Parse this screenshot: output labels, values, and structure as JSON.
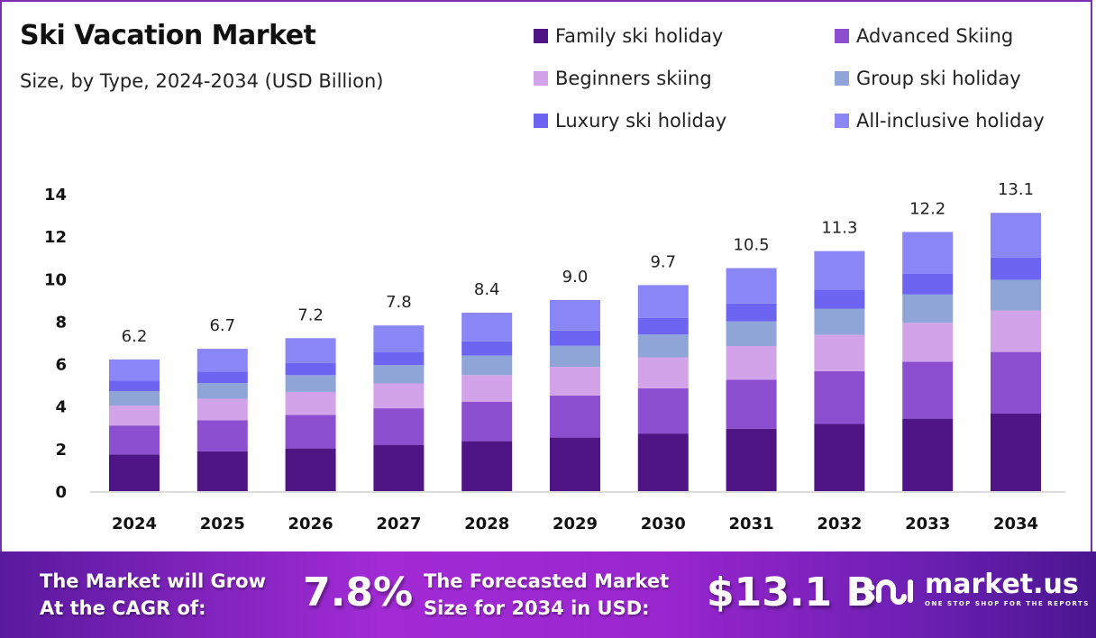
{
  "header": {
    "title": "Ski Vacation Market",
    "subtitle": "Size, by Type, 2024-2034 (USD Billion)"
  },
  "legend": [
    {
      "label": "Family ski holiday",
      "color": "#4f1585"
    },
    {
      "label": "Advanced Skiing",
      "color": "#8b4fcf"
    },
    {
      "label": "Beginners skiing",
      "color": "#d3a3ea"
    },
    {
      "label": "Group ski holiday",
      "color": "#8fa5d8"
    },
    {
      "label": "Luxury ski holiday",
      "color": "#6d64f2"
    },
    {
      "label": "All-inclusive holiday",
      "color": "#8b86f6"
    }
  ],
  "chart_data": {
    "type": "bar",
    "stacked": true,
    "title": "Ski Vacation Market",
    "subtitle": "Size, by Type, 2024-2034 (USD Billion)",
    "xlabel": "",
    "ylabel": "",
    "ylim": [
      0,
      14
    ],
    "yticks": [
      0,
      2,
      4,
      6,
      8,
      10,
      12,
      14
    ],
    "grid": false,
    "legend_position": "top-right",
    "categories": [
      "2024",
      "2025",
      "2026",
      "2027",
      "2028",
      "2029",
      "2030",
      "2031",
      "2032",
      "2033",
      "2034"
    ],
    "totals": [
      6.2,
      6.7,
      7.2,
      7.8,
      8.4,
      9.0,
      9.7,
      10.5,
      11.3,
      12.2,
      13.1
    ],
    "series": [
      {
        "name": "Family ski holiday",
        "color": "#4f1585",
        "values": [
          1.73,
          1.87,
          2.01,
          2.18,
          2.35,
          2.52,
          2.71,
          2.94,
          3.16,
          3.41,
          3.65
        ]
      },
      {
        "name": "Advanced Skiing",
        "color": "#8b4fcf",
        "values": [
          1.36,
          1.47,
          1.58,
          1.72,
          1.85,
          1.98,
          2.13,
          2.31,
          2.49,
          2.68,
          2.9
        ]
      },
      {
        "name": "Beginners skiing",
        "color": "#d3a3ea",
        "values": [
          0.93,
          1.01,
          1.08,
          1.17,
          1.26,
          1.35,
          1.46,
          1.58,
          1.7,
          1.83,
          1.95
        ]
      },
      {
        "name": "Group ski holiday",
        "color": "#8fa5d8",
        "values": [
          0.68,
          0.74,
          0.79,
          0.86,
          0.92,
          0.99,
          1.07,
          1.16,
          1.24,
          1.34,
          1.45
        ]
      },
      {
        "name": "Luxury ski holiday",
        "color": "#6d64f2",
        "values": [
          0.5,
          0.54,
          0.58,
          0.62,
          0.67,
          0.72,
          0.78,
          0.84,
          0.9,
          0.98,
          1.05
        ]
      },
      {
        "name": "All-inclusive holiday",
        "color": "#8b86f6",
        "values": [
          1.0,
          1.07,
          1.16,
          1.25,
          1.35,
          1.44,
          1.55,
          1.67,
          1.81,
          1.96,
          2.1
        ]
      }
    ]
  },
  "banner": {
    "cagr_text_line1": "The Market will Grow",
    "cagr_text_line2": "At the CAGR of:",
    "cagr_value": "7.8%",
    "forecast_text_line1": "The Forecasted Market",
    "forecast_text_line2": "Size for 2034 in USD:",
    "forecast_value": "$13.1 B",
    "logo_name": "market.us",
    "logo_tagline": "ONE STOP SHOP FOR THE REPORTS"
  }
}
